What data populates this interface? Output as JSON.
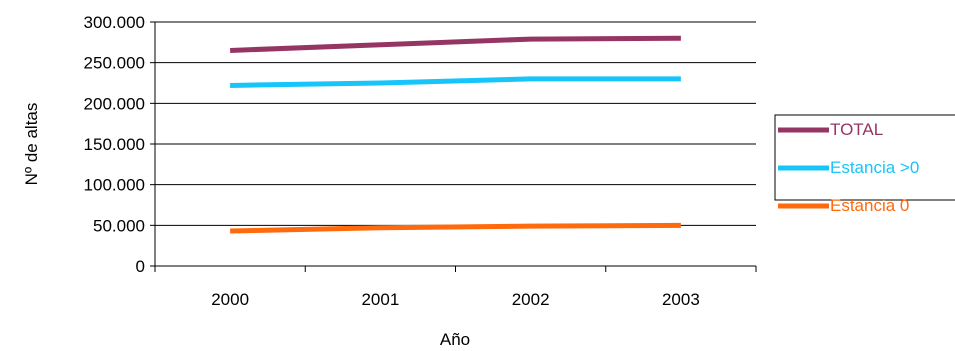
{
  "chart_data": {
    "type": "line",
    "categories": [
      "2000",
      "2001",
      "2002",
      "2003"
    ],
    "series": [
      {
        "name": "TOTAL",
        "color": "#953563",
        "values": [
          265000,
          272000,
          279000,
          280000
        ]
      },
      {
        "name": "Estancia >0",
        "color": "#17C5FA",
        "values": [
          222000,
          225000,
          230000,
          230000
        ]
      },
      {
        "name": "Estancia 0",
        "color": "#FF6A0D",
        "values": [
          43000,
          47000,
          49000,
          50000
        ]
      }
    ],
    "xlabel": "Año",
    "ylabel": "Nº de altas",
    "ylim": [
      0,
      300000
    ],
    "yticks": [
      0,
      50000,
      100000,
      150000,
      200000,
      250000,
      300000
    ],
    "ytick_labels": [
      "0",
      "50.000",
      "100.000",
      "150.000",
      "200.000",
      "250.000",
      "300.000"
    ],
    "grid": true,
    "legend_position": "right"
  }
}
